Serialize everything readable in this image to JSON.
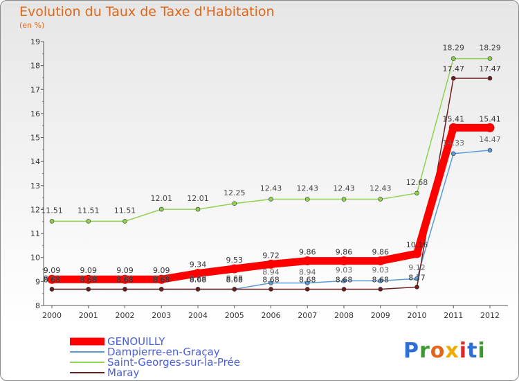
{
  "header": {
    "title": "Evolution du Taux de Taxe d'Habitation",
    "subtitle": "(en %)"
  },
  "brand": {
    "logo_letters": [
      "P",
      "r",
      "o",
      "x",
      "i",
      "t",
      "i"
    ],
    "logo_colors": [
      "#2f6fd1",
      "#3b9a2c",
      "#e0671a",
      "#f2a900",
      "#d42a2a",
      "#2f6fd1",
      "#3b9a2c"
    ]
  },
  "chart_data": {
    "type": "line",
    "title": "Evolution du Taux de Taxe d'Habitation",
    "subtitle": "(en %)",
    "xlabel": "",
    "ylabel": "",
    "x": [
      2000,
      2001,
      2002,
      2003,
      2004,
      2005,
      2006,
      2007,
      2008,
      2009,
      2010,
      2011,
      2012
    ],
    "ylim": [
      8,
      19
    ],
    "yticks": [
      8,
      9,
      10,
      11,
      12,
      13,
      14,
      15,
      16,
      17,
      18,
      19
    ],
    "legend_position": "bottom-left",
    "grid": false,
    "series": [
      {
        "name": "GENOUILLY",
        "color": "#ff0000",
        "values": [
          9.09,
          9.09,
          9.09,
          9.09,
          9.34,
          9.53,
          9.72,
          9.86,
          9.86,
          9.86,
          10.16,
          15.41,
          15.41
        ],
        "labels": [
          "9.09",
          "9.09",
          "9.09",
          "9.09",
          "9.34",
          "9.53",
          "9.72",
          "9.86",
          "9.86",
          "9.86",
          "10.16",
          "15.41",
          "15.41"
        ]
      },
      {
        "name": "Dampierre-en-Graçay",
        "color": "#5b9bd5",
        "values": [
          8.68,
          8.68,
          8.68,
          8.68,
          8.68,
          8.68,
          8.94,
          8.94,
          9.03,
          9.03,
          9.12,
          14.33,
          14.47
        ],
        "labels": [
          "8.68",
          "8.68",
          "8.68",
          "8.68",
          "8.68",
          "8.68",
          "8.94",
          "8.94",
          "9.03",
          "9.03",
          "9.12",
          "14.33",
          "14.47"
        ]
      },
      {
        "name": "Saint-Georges-sur-la-Prée",
        "color": "#8fd150",
        "values": [
          11.51,
          11.51,
          11.51,
          12.01,
          12.01,
          12.25,
          12.43,
          12.43,
          12.43,
          12.43,
          12.68,
          18.29,
          18.29
        ],
        "labels": [
          "11.51",
          "11.51",
          "11.51",
          "12.01",
          "12.01",
          "12.25",
          "12.43",
          "12.43",
          "12.43",
          "12.43",
          "12.68",
          "18.29",
          "18.29"
        ]
      },
      {
        "name": "Maray",
        "color": "#6b1e1e",
        "values": [
          8.68,
          8.68,
          8.68,
          8.68,
          8.68,
          8.68,
          8.68,
          8.68,
          8.68,
          8.68,
          8.77,
          17.47,
          17.47
        ],
        "labels": [
          "8.68",
          "8.68",
          "8.68",
          "8.68",
          "8.68",
          "8.68",
          "8.68",
          "8.68",
          "8.68",
          "8.68",
          "8.77",
          "17.47",
          "17.47"
        ]
      }
    ]
  }
}
